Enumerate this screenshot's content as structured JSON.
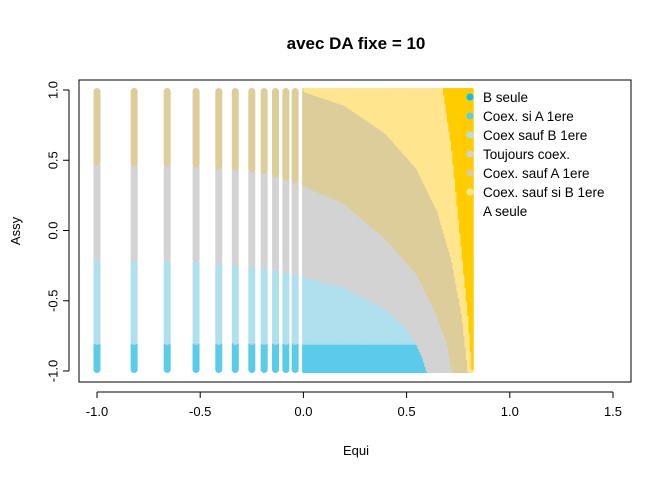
{
  "chart_data": {
    "type": "scatter",
    "title": "avec DA fixe = 10",
    "xlabel": "Equi",
    "ylabel": "Assy",
    "xlim": [
      -1.0,
      1.6
    ],
    "ylim": [
      -1.0,
      1.0
    ],
    "x_ticks": [
      "-1.0",
      "-0.5",
      "0.0",
      "0.5",
      "1.0",
      "1.5"
    ],
    "y_ticks": [
      "-1.0",
      "-0.5",
      "0.0",
      "0.5",
      "1.0"
    ],
    "x_tick_values": [
      -1.0,
      -0.5,
      0.0,
      0.5,
      1.0,
      1.5
    ],
    "y_tick_values": [
      -1.0,
      -0.5,
      0.0,
      0.5,
      1.0
    ],
    "legend_position": "top-right",
    "x_max_data": 0.82,
    "sparse_x_columns": [
      -1.0,
      -0.82,
      -0.66,
      -0.52,
      -0.41,
      -0.33,
      -0.25,
      -0.19,
      -0.135,
      -0.085,
      -0.04
    ],
    "dense_x_start": 0.0,
    "region_boundaries": {
      "Coex sauf B 1ere_upper": [
        [
          -1.0,
          -0.2
        ],
        [
          -0.5,
          -0.22
        ],
        [
          -0.2,
          -0.26
        ],
        [
          0.0,
          -0.32
        ],
        [
          0.2,
          -0.4
        ],
        [
          0.4,
          -0.55
        ],
        [
          0.5,
          -0.68
        ],
        [
          0.55,
          -0.8
        ],
        [
          0.58,
          -0.9
        ],
        [
          0.6,
          -1.0
        ]
      ],
      "Toujours coex._upper": [
        [
          -1.0,
          0.48
        ],
        [
          -0.5,
          0.46
        ],
        [
          -0.2,
          0.42
        ],
        [
          0.0,
          0.33
        ],
        [
          0.2,
          0.2
        ],
        [
          0.4,
          -0.05
        ],
        [
          0.55,
          -0.3
        ],
        [
          0.65,
          -0.6
        ],
        [
          0.7,
          -0.8
        ],
        [
          0.72,
          -1.0
        ]
      ],
      "Coex. sauf A 1ere_upper": [
        [
          0.0,
          1.0
        ],
        [
          0.2,
          0.9
        ],
        [
          0.4,
          0.7
        ],
        [
          0.55,
          0.45
        ],
        [
          0.65,
          0.15
        ],
        [
          0.72,
          -0.2
        ],
        [
          0.77,
          -0.6
        ],
        [
          0.8,
          -1.0
        ]
      ],
      "Coex. sauf si B 1ere_upper": [
        [
          0.68,
          1.0
        ],
        [
          0.72,
          0.6
        ],
        [
          0.76,
          0.0
        ],
        [
          0.8,
          -0.6
        ],
        [
          0.82,
          -1.0
        ]
      ],
      "Coex. si A 1ere_band": [
        -1.0,
        -0.8
      ]
    },
    "series": [
      {
        "name": "B seule",
        "color": "#00BFFF"
      },
      {
        "name": "Coex. si A 1ere",
        "color": "#5BCBEA"
      },
      {
        "name": "Coex sauf B 1ere",
        "color": "#B0E0EE"
      },
      {
        "name": "Toujours coex.",
        "color": "#D3D3D3"
      },
      {
        "name": "Coex. sauf A 1ere",
        "color": "#DCCD9A"
      },
      {
        "name": "Coex. sauf si B 1ere",
        "color": "#FFE68E"
      },
      {
        "name": "A seule",
        "color": "#FFCC00"
      }
    ]
  }
}
